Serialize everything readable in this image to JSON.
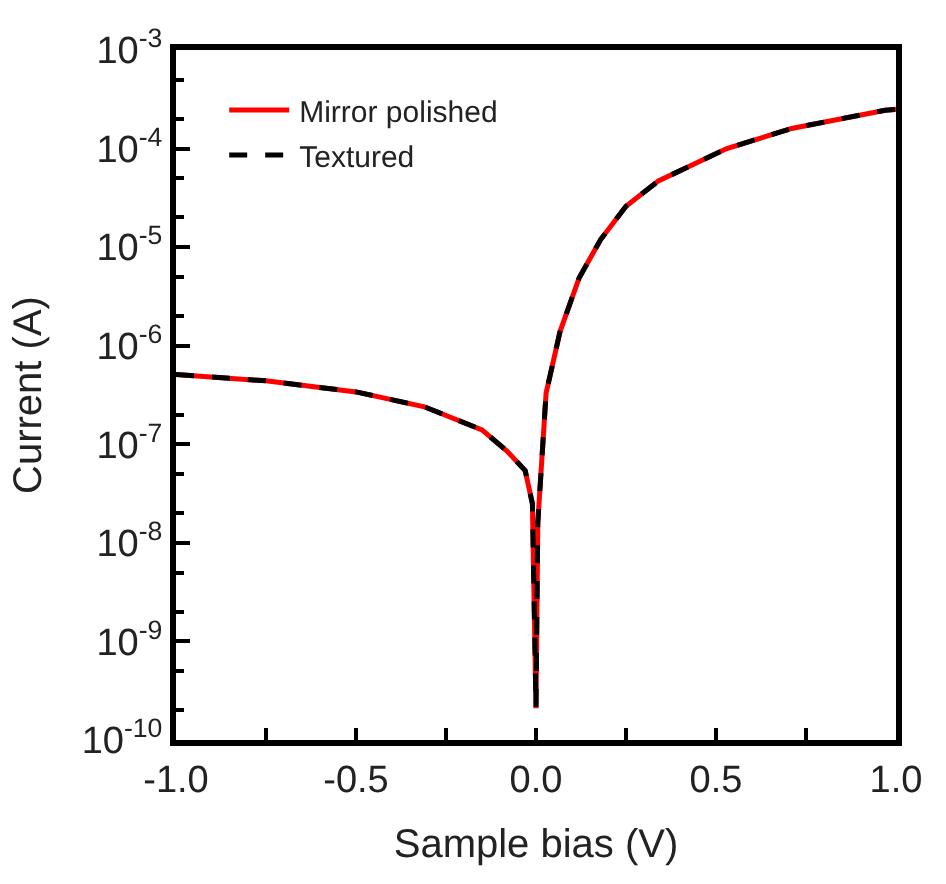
{
  "chart_data": {
    "type": "line",
    "xlabel": "Sample bias (V)",
    "ylabel": "Current (A)",
    "log": "y",
    "x": [
      -1.0,
      -0.75,
      -0.5,
      -0.31,
      -0.15,
      -0.08,
      -0.03,
      -0.01,
      0.0,
      0.005,
      0.028,
      0.067,
      0.12,
      0.18,
      0.25,
      0.34,
      0.53,
      0.71,
      0.97,
      1.0
    ],
    "series": [
      {
        "name": "Mirror polished",
        "color": "#ff0000",
        "line_style": "solid",
        "values": [
          5.1e-07,
          4.4e-07,
          3.4e-07,
          2.4e-07,
          1.4e-07,
          8.5e-08,
          5.4e-08,
          2.5e-08,
          2.1e-10,
          1.6e-08,
          3.3e-07,
          1.4e-06,
          4.9e-06,
          1.2e-05,
          2.6e-05,
          4.7e-05,
          0.0001,
          0.00016,
          0.000245,
          0.00025
        ]
      },
      {
        "name": "Textured",
        "color": "#000000",
        "line_style": "dashed",
        "values": [
          5.1e-07,
          4.4e-07,
          3.4e-07,
          2.4e-07,
          1.4e-07,
          8.5e-08,
          5.4e-08,
          2.5e-08,
          2.1e-10,
          1.6e-08,
          3.3e-07,
          1.4e-06,
          4.9e-06,
          1.2e-05,
          2.6e-05,
          4.7e-05,
          0.0001,
          0.00016,
          0.000245,
          0.00025
        ]
      }
    ],
    "xlim": [
      -1.0,
      1.0
    ],
    "xticks": [
      {
        "value": -1.0,
        "label": "-1.0"
      },
      {
        "value": -0.75,
        "label": null
      },
      {
        "value": -0.5,
        "label": "-0.5"
      },
      {
        "value": -0.25,
        "label": null
      },
      {
        "value": 0.0,
        "label": "0.0"
      },
      {
        "value": 0.25,
        "label": null
      },
      {
        "value": 0.5,
        "label": "0.5"
      },
      {
        "value": 0.75,
        "label": null
      },
      {
        "value": 1.0,
        "label": "1.0"
      }
    ],
    "ylim": [
      1e-10,
      0.001
    ],
    "yticks": [
      {
        "value": 1e-10,
        "label": "10$^{-10}$"
      },
      {
        "value": 1e-09,
        "label": "10$^{-9}$"
      },
      {
        "value": 1e-08,
        "label": "10$^{-8}$"
      },
      {
        "value": 1e-07,
        "label": "10$^{-7}$"
      },
      {
        "value": 1e-06,
        "label": "10$^{-6}$"
      },
      {
        "value": 1e-05,
        "label": "10$^{-5}$"
      },
      {
        "value": 0.0001,
        "label": "10$^{-4}$"
      },
      {
        "value": 0.001,
        "label": "10$^{-3}$"
      }
    ],
    "legend": "top left"
  }
}
